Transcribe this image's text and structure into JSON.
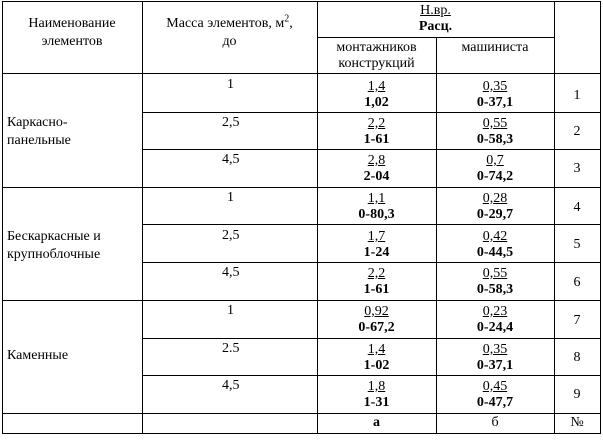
{
  "header": {
    "name_col": [
      "Наименование",
      "элементов"
    ],
    "mass_col": [
      "Масса элементов, м",
      "2",
      ",",
      "до"
    ],
    "norm_top": "Н.вр.",
    "norm_bottom": "Расц.",
    "sub_col1": [
      "монтажников",
      "конструкций"
    ],
    "sub_col2": "машиниста"
  },
  "groups": [
    {
      "name": [
        "Каркасно-",
        "панельные"
      ]
    },
    {
      "name": [
        "Бескаркасные и",
        "крупноблочные"
      ]
    },
    {
      "name": [
        "Каменные"
      ]
    }
  ],
  "rows": [
    {
      "mass": "1",
      "a_top": "1,4",
      "a_bot": "1,02",
      "b_top": "0,35",
      "b_bot": "0-37,1",
      "num": "1"
    },
    {
      "mass": "2,5",
      "a_top": "2,2",
      "a_bot": "1-61",
      "b_top": "0,55",
      "b_bot": "0-58,3",
      "num": "2"
    },
    {
      "mass": "4,5",
      "a_top": "2,8",
      "a_bot": "2-04",
      "b_top": "0,7",
      "b_bot": "0-74,2",
      "num": "3"
    },
    {
      "mass": "1",
      "a_top": "1,1",
      "a_bot": "0-80,3",
      "b_top": "0,28",
      "b_bot": "0-29,7",
      "num": "4"
    },
    {
      "mass": "2,5",
      "a_top": "1,7",
      "a_bot": "1-24",
      "b_top": "0,42",
      "b_bot": "0-44,5",
      "num": "5"
    },
    {
      "mass": "4,5",
      "a_top": "2,2",
      "a_bot": "1-61",
      "b_top": "0,55",
      "b_bot": "0-58,3",
      "num": "6"
    },
    {
      "mass": "1",
      "a_top": "0,92",
      "a_bot": "0-67,2",
      "b_top": "0,23",
      "b_bot": "0-24,4",
      "num": "7"
    },
    {
      "mass": "2.5",
      "a_top": "1,4",
      "a_bot": "1-02",
      "b_top": "0,35",
      "b_bot": "0-37,1",
      "num": "8"
    },
    {
      "mass": "4,5",
      "a_top": "1,8",
      "a_bot": "1-31",
      "b_top": "0,45",
      "b_bot": "0-47,7",
      "num": "9"
    }
  ],
  "footer": {
    "a": "а",
    "b": "б",
    "num": "№"
  }
}
